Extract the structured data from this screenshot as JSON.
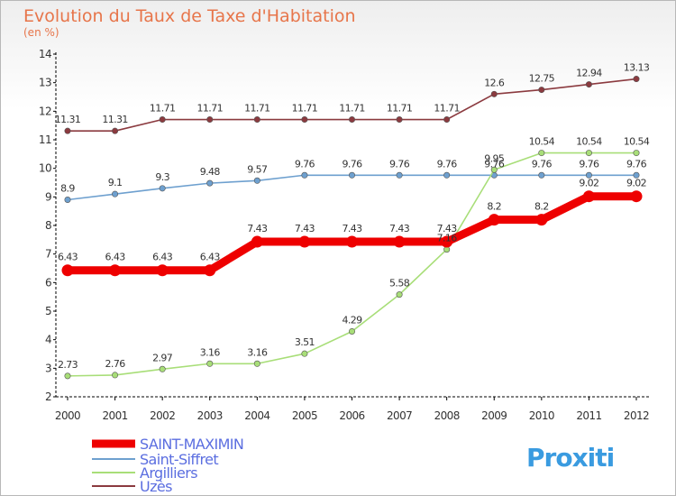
{
  "header": {
    "title": "Evolution du Taux de Taxe d'Habitation",
    "subtitle": "(en %)"
  },
  "logo": {
    "text": "Proxiti"
  },
  "chart_data": {
    "type": "line",
    "title": "Evolution du Taux de Taxe d'Habitation",
    "subtitle": "(en %)",
    "xlabel": "",
    "ylabel": "",
    "x": [
      "2000",
      "2001",
      "2002",
      "2003",
      "2004",
      "2005",
      "2006",
      "2007",
      "2008",
      "2009",
      "2010",
      "2011",
      "2012"
    ],
    "ylim": [
      2,
      14
    ],
    "yticks": [
      2,
      3,
      4,
      5,
      6,
      7,
      8,
      9,
      10,
      11,
      12,
      13,
      14
    ],
    "grid": false,
    "legend_position": "bottom-left",
    "series": [
      {
        "name": "SAINT-MAXIMIN",
        "color": "#ee0000",
        "values": [
          6.43,
          6.43,
          6.43,
          6.43,
          7.43,
          7.43,
          7.43,
          7.43,
          7.43,
          8.2,
          8.2,
          9.02,
          9.02
        ],
        "labels": [
          "6.43",
          "6.43",
          "6.43",
          "6.43",
          "7.43",
          "7.43",
          "7.43",
          "7.43",
          "7.43",
          "8.2",
          "8.2",
          "9.02",
          "9.02"
        ]
      },
      {
        "name": "Saint-Siffret",
        "color": "#6ea0cf",
        "values": [
          8.9,
          9.1,
          9.3,
          9.48,
          9.57,
          9.76,
          9.76,
          9.76,
          9.76,
          9.76,
          9.76,
          9.76,
          9.76
        ],
        "labels": [
          "8.9",
          "9.1",
          "9.3",
          "9.48",
          "9.57",
          "9.76",
          "9.76",
          "9.76",
          "9.76",
          "9.76",
          "9.76",
          "9.76",
          "9.76"
        ]
      },
      {
        "name": "Argilliers",
        "color": "#a8de78",
        "values": [
          2.73,
          2.76,
          2.97,
          3.16,
          3.16,
          3.51,
          4.29,
          5.58,
          7.16,
          9.95,
          10.54,
          10.54,
          10.54
        ],
        "labels": [
          "2.73",
          "2.76",
          "2.97",
          "3.16",
          "3.16",
          "3.51",
          "4.29",
          "5.58",
          "7.16",
          "9.95",
          "10.54",
          "10.54",
          "10.54"
        ]
      },
      {
        "name": "Uzès",
        "color": "#8b3a3f",
        "values": [
          11.31,
          11.31,
          11.71,
          11.71,
          11.71,
          11.71,
          11.71,
          11.71,
          11.71,
          12.6,
          12.75,
          12.94,
          13.13
        ],
        "labels": [
          "11.31",
          "11.31",
          "11.71",
          "11.71",
          "11.71",
          "11.71",
          "11.71",
          "11.71",
          "11.71",
          "12.6",
          "12.75",
          "12.94",
          "13.13"
        ]
      }
    ]
  }
}
